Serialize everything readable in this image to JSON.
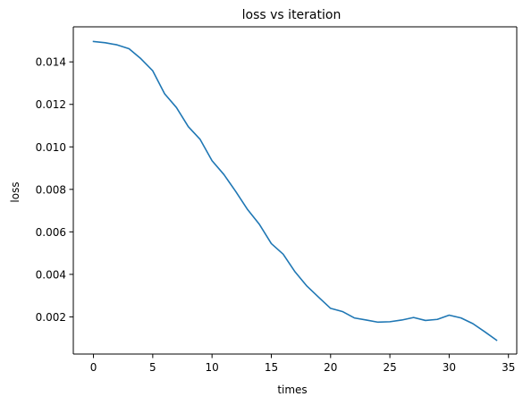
{
  "chart_data": {
    "type": "line",
    "title": "loss vs iteration",
    "xlabel": "times",
    "ylabel": "loss",
    "xlim": [
      -1.7,
      35.7
    ],
    "ylim": [
      0.00025,
      0.01565
    ],
    "xticks": [
      0,
      5,
      10,
      15,
      20,
      25,
      30,
      35
    ],
    "xtick_labels": [
      "0",
      "5",
      "10",
      "15",
      "20",
      "25",
      "30",
      "35"
    ],
    "yticks": [
      0.002,
      0.004,
      0.006,
      0.008,
      0.01,
      0.012,
      0.014
    ],
    "ytick_labels": [
      "0.002",
      "0.004",
      "0.006",
      "0.008",
      "0.010",
      "0.012",
      "0.014"
    ],
    "grid": false,
    "series": [
      {
        "color": "#1f77b4",
        "x": [
          0,
          1,
          2,
          3,
          4,
          5,
          6,
          7,
          8,
          9,
          10,
          11,
          12,
          13,
          14,
          15,
          16,
          17,
          18,
          19,
          20,
          21,
          22,
          23,
          24,
          25,
          26,
          27,
          28,
          29,
          30,
          31,
          32,
          33,
          34
        ],
        "y": [
          0.01496,
          0.0149,
          0.0148,
          0.01462,
          0.01415,
          0.01358,
          0.0125,
          0.01185,
          0.01095,
          0.01035,
          0.00935,
          0.0087,
          0.0079,
          0.00705,
          0.00635,
          0.00545,
          0.00495,
          0.00412,
          0.00345,
          0.00292,
          0.0024,
          0.00225,
          0.00195,
          0.00185,
          0.00175,
          0.00177,
          0.00185,
          0.00197,
          0.00183,
          0.00188,
          0.00208,
          0.00195,
          0.00168,
          0.0013,
          0.0009
        ]
      }
    ]
  }
}
